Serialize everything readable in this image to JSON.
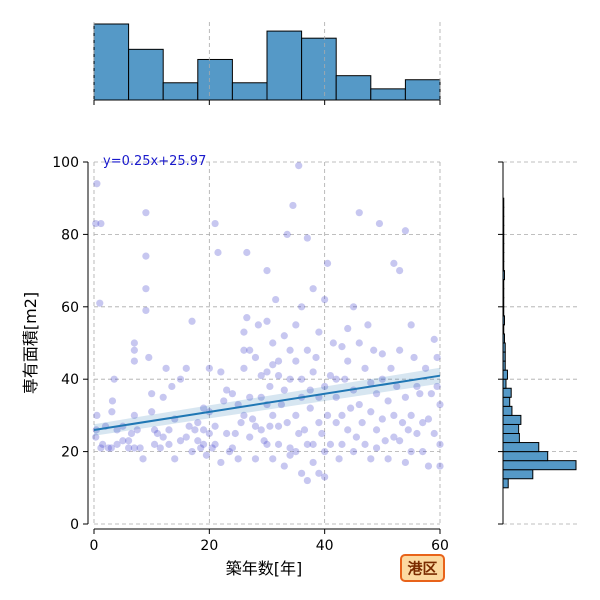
{
  "chart_data": {
    "type": "scatter",
    "title": "",
    "xlabel": "築年数[年]",
    "ylabel": "専有面積[m2]",
    "xlim": [
      0,
      60
    ],
    "ylim": [
      0,
      100
    ],
    "x_ticks": [
      "0",
      "20",
      "40",
      "60"
    ],
    "y_ticks": [
      "0",
      "20",
      "40",
      "60",
      "80",
      "100"
    ],
    "grid": true,
    "regression": {
      "label": "y=0.25x+25.97",
      "slope": 0.25,
      "intercept": 25.97
    },
    "badge": "港区",
    "colors": {
      "points": "#3535c8",
      "line": "#1f77b4",
      "bars": "#5599c7",
      "badge_fill": "#fcd9a0",
      "badge_border": "#e8631a"
    },
    "marginal_x": {
      "bins": [
        0,
        6,
        12,
        18,
        24,
        30,
        36,
        42,
        48,
        54,
        60
      ],
      "counts": [
        75,
        50,
        17,
        40,
        17,
        68,
        61,
        24,
        11,
        20
      ]
    },
    "marginal_y": {
      "bins": [
        10,
        12.5,
        15,
        17.5,
        20,
        22.5,
        25,
        27.5,
        30,
        32.5,
        35,
        37.5,
        40,
        42.5,
        45,
        47.5,
        50,
        52.5,
        55,
        57.5,
        60,
        62.5,
        65,
        67.5,
        70,
        72.5,
        75,
        77.5,
        80,
        82.5,
        85,
        87.5,
        90
      ],
      "counts": [
        7,
        40,
        98,
        60,
        48,
        22,
        21,
        24,
        12,
        9,
        11,
        4,
        6,
        3,
        3,
        3,
        2,
        1,
        2,
        1,
        1,
        1,
        1,
        2,
        1,
        1,
        1,
        1,
        1,
        1,
        1,
        1
      ]
    },
    "points": [
      [
        0.5,
        94
      ],
      [
        0.3,
        83
      ],
      [
        1.2,
        83
      ],
      [
        1.0,
        61
      ],
      [
        0.5,
        30
      ],
      [
        0.4,
        26
      ],
      [
        0.3,
        24
      ],
      [
        1.2,
        21
      ],
      [
        1.5,
        22
      ],
      [
        2,
        27
      ],
      [
        2.5,
        21
      ],
      [
        3,
        21
      ],
      [
        3.5,
        40
      ],
      [
        3.2,
        34
      ],
      [
        3.1,
        31
      ],
      [
        4,
        22
      ],
      [
        4,
        26
      ],
      [
        5,
        27
      ],
      [
        5,
        23
      ],
      [
        6,
        21
      ],
      [
        6,
        23
      ],
      [
        6.5,
        25
      ],
      [
        7,
        48
      ],
      [
        7,
        50
      ],
      [
        7,
        45
      ],
      [
        7,
        30
      ],
      [
        7.5,
        26
      ],
      [
        7,
        21
      ],
      [
        8,
        21
      ],
      [
        8.5,
        18
      ],
      [
        9,
        86
      ],
      [
        9,
        74
      ],
      [
        9,
        65
      ],
      [
        9,
        59
      ],
      [
        9.5,
        46
      ],
      [
        10,
        36
      ],
      [
        10,
        31
      ],
      [
        10.5,
        22
      ],
      [
        10.5,
        26
      ],
      [
        11,
        25
      ],
      [
        11.5,
        21
      ],
      [
        12,
        24
      ],
      [
        12,
        35
      ],
      [
        12.5,
        43
      ],
      [
        13,
        22
      ],
      [
        13,
        26
      ],
      [
        13.5,
        38
      ],
      [
        14,
        29
      ],
      [
        14,
        18
      ],
      [
        15,
        40
      ],
      [
        15,
        23
      ],
      [
        16,
        24
      ],
      [
        16,
        43
      ],
      [
        16.5,
        27
      ],
      [
        17,
        20
      ],
      [
        17,
        56
      ],
      [
        17.5,
        26
      ],
      [
        18,
        28
      ],
      [
        18,
        23
      ],
      [
        18.5,
        21
      ],
      [
        19,
        26
      ],
      [
        19,
        22
      ],
      [
        19,
        32
      ],
      [
        19.5,
        19
      ],
      [
        20,
        25
      ],
      [
        20,
        43
      ],
      [
        20,
        31
      ],
      [
        20.5,
        21
      ],
      [
        21,
        83
      ],
      [
        21,
        22
      ],
      [
        21,
        27
      ],
      [
        21.5,
        75
      ],
      [
        22,
        42
      ],
      [
        22,
        17
      ],
      [
        22.5,
        34
      ],
      [
        23,
        37
      ],
      [
        23,
        25
      ],
      [
        23.5,
        20
      ],
      [
        24,
        21
      ],
      [
        24,
        36
      ],
      [
        24.5,
        25
      ],
      [
        25,
        18
      ],
      [
        25,
        33
      ],
      [
        25.5,
        28
      ],
      [
        26,
        53
      ],
      [
        26,
        48
      ],
      [
        26,
        30
      ],
      [
        26.5,
        57
      ],
      [
        26,
        43
      ],
      [
        26.5,
        75
      ],
      [
        27,
        48
      ],
      [
        27,
        35
      ],
      [
        27.5,
        29
      ],
      [
        27,
        24
      ],
      [
        28,
        27
      ],
      [
        28,
        46
      ],
      [
        28,
        18
      ],
      [
        28.5,
        55
      ],
      [
        29,
        35
      ],
      [
        29,
        41
      ],
      [
        29,
        26
      ],
      [
        29.5,
        23
      ],
      [
        30,
        56
      ],
      [
        30,
        70
      ],
      [
        30,
        42
      ],
      [
        30,
        33
      ],
      [
        30,
        22
      ],
      [
        30.5,
        27
      ],
      [
        30.5,
        38
      ],
      [
        31,
        50
      ],
      [
        31,
        44
      ],
      [
        31,
        30
      ],
      [
        31,
        18
      ],
      [
        31.5,
        62
      ],
      [
        32,
        41
      ],
      [
        32,
        27
      ],
      [
        32,
        22
      ],
      [
        32,
        45
      ],
      [
        32.5,
        33
      ],
      [
        33,
        52
      ],
      [
        33,
        16
      ],
      [
        33,
        37
      ],
      [
        33.5,
        28
      ],
      [
        33.5,
        80
      ],
      [
        34,
        21
      ],
      [
        34,
        48
      ],
      [
        34,
        40
      ],
      [
        34,
        19
      ],
      [
        34.5,
        88
      ],
      [
        35,
        45
      ],
      [
        35,
        30
      ],
      [
        35,
        20
      ],
      [
        35,
        55
      ],
      [
        35.5,
        99
      ],
      [
        35.5,
        25
      ],
      [
        36,
        35
      ],
      [
        36,
        14
      ],
      [
        36,
        40
      ],
      [
        36,
        60
      ],
      [
        36.5,
        26
      ],
      [
        37,
        12
      ],
      [
        37,
        48
      ],
      [
        37,
        22
      ],
      [
        37,
        79
      ],
      [
        37.5,
        32
      ],
      [
        37.5,
        37
      ],
      [
        38,
        22
      ],
      [
        38,
        42
      ],
      [
        38,
        65
      ],
      [
        38,
        17
      ],
      [
        38.5,
        46
      ],
      [
        39,
        28
      ],
      [
        39,
        14
      ],
      [
        39,
        53
      ],
      [
        39,
        35
      ],
      [
        39.5,
        25
      ],
      [
        40,
        38
      ],
      [
        40,
        20
      ],
      [
        40,
        62
      ],
      [
        40,
        13
      ],
      [
        40.5,
        30
      ],
      [
        40.5,
        72
      ],
      [
        41,
        41
      ],
      [
        41,
        22
      ],
      [
        41.5,
        50
      ],
      [
        42,
        40
      ],
      [
        42,
        28
      ],
      [
        42,
        35
      ],
      [
        42.5,
        18
      ],
      [
        43,
        49
      ],
      [
        43,
        22
      ],
      [
        43,
        30
      ],
      [
        43.5,
        40
      ],
      [
        44,
        54
      ],
      [
        44,
        26
      ],
      [
        44,
        45
      ],
      [
        44.5,
        32
      ],
      [
        45,
        60
      ],
      [
        45,
        20
      ],
      [
        45,
        37
      ],
      [
        45.5,
        24
      ],
      [
        46,
        86
      ],
      [
        46,
        33
      ],
      [
        46,
        50
      ],
      [
        46.5,
        28
      ],
      [
        47,
        43
      ],
      [
        47,
        22
      ],
      [
        47.5,
        55
      ],
      [
        48,
        39
      ],
      [
        48,
        18
      ],
      [
        48,
        31
      ],
      [
        48.5,
        48
      ],
      [
        49,
        26
      ],
      [
        49,
        36
      ],
      [
        49,
        21
      ],
      [
        49.5,
        83
      ],
      [
        50,
        40
      ],
      [
        50,
        29
      ],
      [
        50,
        47
      ],
      [
        50.5,
        23
      ],
      [
        51,
        34
      ],
      [
        51,
        18
      ],
      [
        51.5,
        43
      ],
      [
        52,
        24
      ],
      [
        52,
        72
      ],
      [
        52,
        30
      ],
      [
        52.5,
        38
      ],
      [
        53,
        70
      ],
      [
        53,
        23
      ],
      [
        53,
        48
      ],
      [
        53.5,
        28
      ],
      [
        54,
        81
      ],
      [
        54,
        35
      ],
      [
        54,
        17
      ],
      [
        54.5,
        26
      ],
      [
        55,
        55
      ],
      [
        55,
        30
      ],
      [
        55,
        20
      ],
      [
        55.5,
        46
      ],
      [
        56,
        38
      ],
      [
        56,
        25
      ],
      [
        56.5,
        36
      ],
      [
        57,
        28
      ],
      [
        57,
        20
      ],
      [
        57.5,
        43
      ],
      [
        58,
        16
      ],
      [
        58,
        29
      ],
      [
        58.5,
        36
      ],
      [
        59,
        51
      ],
      [
        59,
        25
      ],
      [
        59.5,
        46
      ],
      [
        59.5,
        38
      ],
      [
        60,
        16
      ],
      [
        60,
        33
      ],
      [
        60,
        22
      ]
    ]
  }
}
